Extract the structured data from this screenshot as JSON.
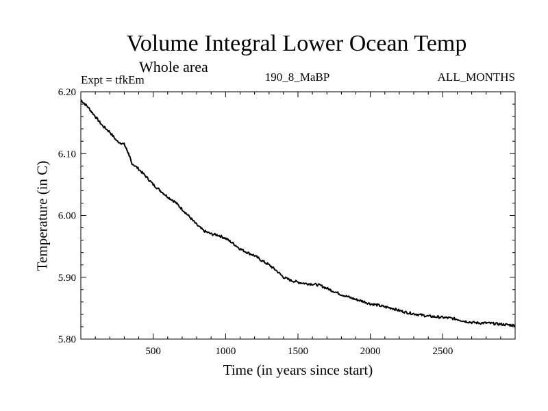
{
  "chart_data": {
    "type": "line",
    "title": "Volume Integral Lower Ocean Temp",
    "subtitle": "Whole area",
    "annotations": {
      "expt": "Expt = tfkEm",
      "run": "190_8_MaBP",
      "period": "ALL_MONTHS"
    },
    "xlabel": "Time (in years since start)",
    "ylabel": "Temperature (in C)",
    "xlim": [
      0,
      3000
    ],
    "ylim": [
      5.8,
      6.2
    ],
    "xticks": [
      500,
      1000,
      1500,
      2000,
      2500
    ],
    "xtick_labels": [
      "500",
      "1000",
      "1500",
      "2000",
      "2500"
    ],
    "yticks": [
      5.8,
      5.9,
      6.0,
      6.1,
      6.2
    ],
    "ytick_labels": [
      "5.80",
      "5.90",
      "6.00",
      "6.10",
      "6.20"
    ],
    "grid": false,
    "line_color": "#000000",
    "series": [
      {
        "x": [
          0,
          50,
          100,
          150,
          200,
          250,
          300,
          330,
          350,
          400,
          450,
          500,
          550,
          600,
          650,
          700,
          750,
          800,
          850,
          900,
          950,
          1000,
          1050,
          1100,
          1150,
          1200,
          1250,
          1300,
          1350,
          1400,
          1450,
          1500,
          1550,
          1600,
          1650,
          1700,
          1750,
          1800,
          1850,
          1900,
          1950,
          2000,
          2050,
          2100,
          2150,
          2200,
          2250,
          2300,
          2350,
          2400,
          2450,
          2500,
          2550,
          2600,
          2650,
          2700,
          2750,
          2800,
          2850,
          2900,
          2950,
          3000
        ],
        "y": [
          6.187,
          6.175,
          6.16,
          6.145,
          6.135,
          6.12,
          6.115,
          6.1,
          6.085,
          6.075,
          6.063,
          6.05,
          6.04,
          6.03,
          6.022,
          6.01,
          5.998,
          5.985,
          5.975,
          5.97,
          5.968,
          5.963,
          5.955,
          5.946,
          5.94,
          5.935,
          5.927,
          5.92,
          5.911,
          5.9,
          5.895,
          5.892,
          5.89,
          5.889,
          5.887,
          5.882,
          5.877,
          5.872,
          5.868,
          5.864,
          5.861,
          5.857,
          5.855,
          5.852,
          5.85,
          5.846,
          5.843,
          5.841,
          5.839,
          5.837,
          5.836,
          5.835,
          5.834,
          5.832,
          5.829,
          5.827,
          5.826,
          5.826,
          5.825,
          5.824,
          5.823,
          5.822
        ]
      }
    ]
  }
}
